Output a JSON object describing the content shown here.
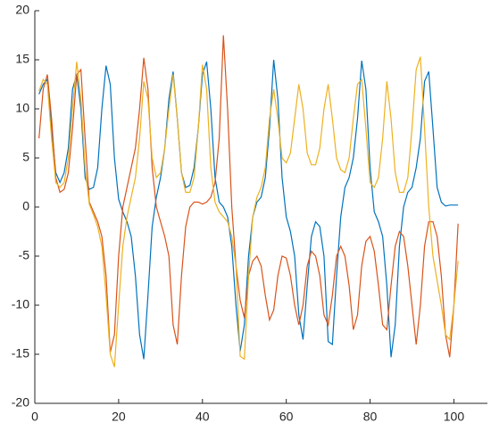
{
  "chart_data": {
    "type": "line",
    "x": [
      1,
      2,
      3,
      4,
      5,
      6,
      7,
      8,
      9,
      10,
      11,
      12,
      13,
      14,
      15,
      16,
      17,
      18,
      19,
      20,
      21,
      22,
      23,
      24,
      25,
      26,
      27,
      28,
      29,
      30,
      31,
      32,
      33,
      34,
      35,
      36,
      37,
      38,
      39,
      40,
      41,
      42,
      43,
      44,
      45,
      46,
      47,
      48,
      49,
      50,
      51,
      52,
      53,
      54,
      55,
      56,
      57,
      58,
      59,
      60,
      61,
      62,
      63,
      64,
      65,
      66,
      67,
      68,
      69,
      70,
      71,
      72,
      73,
      74,
      75,
      76,
      77,
      78,
      79,
      80,
      81,
      82,
      83,
      84,
      85,
      86,
      87,
      88,
      89,
      90,
      91,
      92,
      93,
      94,
      95,
      96,
      97,
      98,
      99,
      100,
      101
    ],
    "series": [
      {
        "color": "#0072bd",
        "values": [
          11.5,
          12.5,
          13,
          8,
          3.5,
          2.5,
          3.5,
          6,
          12,
          13.5,
          10,
          3,
          1.8,
          2,
          4,
          10,
          14.4,
          12.5,
          5,
          0.8,
          -0.5,
          -1.5,
          -3,
          -7,
          -13,
          -15.5,
          -9,
          -2,
          1,
          3,
          6,
          11,
          13.8,
          9,
          3.5,
          2,
          2.2,
          4,
          8,
          13.5,
          14.8,
          10,
          3,
          0.5,
          0,
          -1,
          -4,
          -10,
          -14.7,
          -12,
          -5,
          -1,
          0.5,
          1,
          3,
          8,
          15,
          11,
          3,
          -1,
          -2.5,
          -5,
          -11,
          -13.5,
          -8,
          -3,
          -1.5,
          -2,
          -5,
          -13.7,
          -14,
          -7,
          -1,
          2,
          3,
          5,
          9,
          14.9,
          12,
          4,
          -0.5,
          -1.5,
          -3,
          -8,
          -15.3,
          -12,
          -4,
          0,
          1.5,
          2,
          4,
          7,
          12.8,
          13.8,
          8,
          2,
          0.5,
          0.1,
          0.2,
          0.2,
          0.2
        ]
      },
      {
        "color": "#d95319",
        "values": [
          7,
          12,
          13.5,
          9,
          3,
          1.5,
          1.8,
          3.5,
          8,
          13.5,
          14,
          7,
          0.5,
          -0.5,
          -1.5,
          -3,
          -7,
          -14.8,
          -13,
          -5,
          0,
          2,
          4,
          6,
          10,
          15.2,
          12,
          4,
          0,
          -1.5,
          -3,
          -5,
          -12,
          -14,
          -7,
          -2,
          0,
          0.5,
          0.5,
          0.3,
          0.5,
          1,
          2.5,
          7,
          17.5,
          10,
          0,
          -6,
          -9.5,
          -11.3,
          -7,
          -5.5,
          -5,
          -6,
          -9,
          -11.5,
          -10.5,
          -7,
          -5,
          -5.2,
          -7,
          -10,
          -12,
          -10,
          -6,
          -4.5,
          -5,
          -7,
          -11,
          -12,
          -9,
          -5,
          -4,
          -5,
          -8,
          -12.5,
          -11,
          -6,
          -3.5,
          -3,
          -4.5,
          -8,
          -12,
          -12.5,
          -8,
          -4,
          -2.5,
          -3,
          -6,
          -10,
          -14,
          -10,
          -4,
          -1.5,
          -1.5,
          -3,
          -7,
          -13,
          -15.3,
          -10,
          -1.7
        ]
      },
      {
        "color": "#edb120",
        "values": [
          11.8,
          13,
          12.5,
          7,
          2.5,
          2,
          2.5,
          5,
          10,
          14.8,
          11,
          4,
          0.3,
          -0.8,
          -2,
          -4,
          -9,
          -15,
          -16.3,
          -10,
          -4,
          -1,
          1,
          3,
          7,
          12.8,
          11,
          5,
          3,
          3.5,
          6,
          10,
          13.5,
          9,
          3.5,
          1.5,
          1.5,
          3,
          8,
          14.5,
          12,
          4,
          0.5,
          -0.5,
          -1,
          -1.5,
          -3,
          -6,
          -15.2,
          -15.5,
          -7,
          -1,
          1,
          2,
          4,
          9,
          12,
          9,
          5,
          4.5,
          5.5,
          9,
          12.5,
          10,
          5.5,
          4.3,
          4.3,
          6,
          10,
          12.5,
          9,
          5,
          3.8,
          3.5,
          5,
          9,
          12.5,
          13,
          8,
          2.5,
          2,
          3,
          7,
          12.8,
          9,
          3.5,
          1.5,
          1.5,
          3,
          8,
          14,
          15.3,
          8,
          0,
          -5,
          -7.5,
          -10,
          -13,
          -13.5,
          -10,
          -5.5
        ]
      }
    ],
    "xlim": [
      0,
      108
    ],
    "ylim": [
      -20,
      20
    ],
    "xticks": [
      0,
      20,
      40,
      60,
      80,
      100
    ],
    "yticks": [
      -20,
      -15,
      -10,
      -5,
      0,
      5,
      10,
      15,
      20
    ]
  }
}
